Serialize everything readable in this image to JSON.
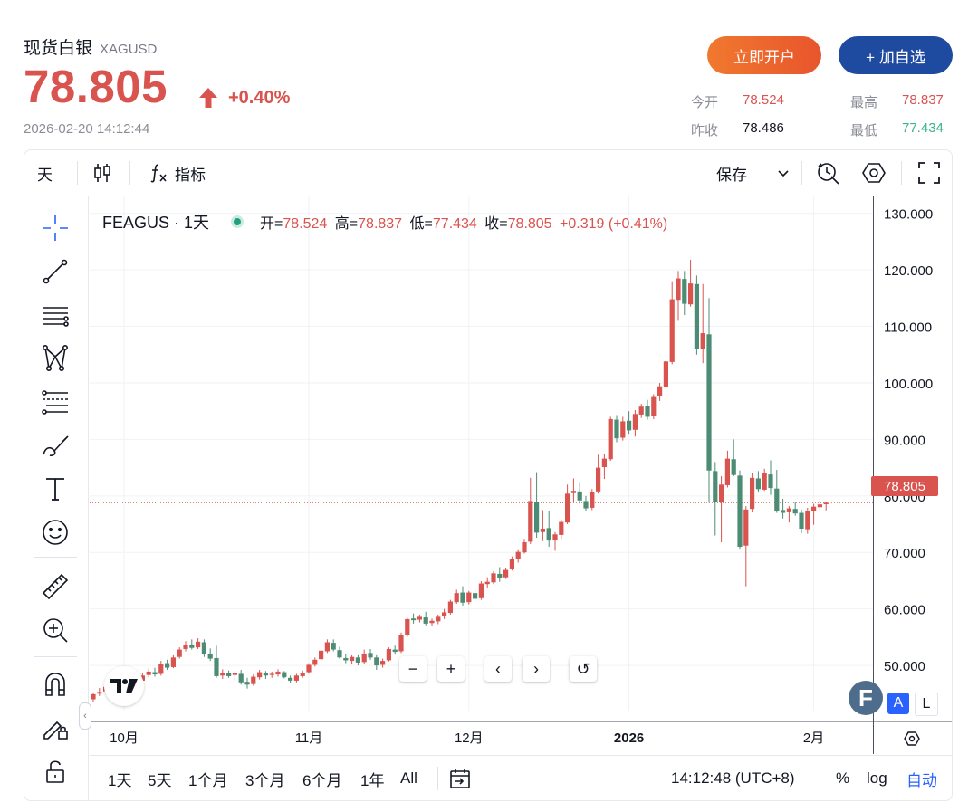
{
  "header": {
    "name": "现货白银",
    "symbol": "XAGUSD",
    "price": "78.805",
    "change": "+0.40%",
    "timestamp": "2026-02-20 14:12:44",
    "open_account_label": "立即开户",
    "add_watch_label": "+ 加自选",
    "stats": {
      "open_label": "今开",
      "open_value": "78.524",
      "high_label": "最高",
      "high_value": "78.837",
      "prev_label": "昨收",
      "prev_value": "78.486",
      "low_label": "最低",
      "low_value": "77.434"
    }
  },
  "colors": {
    "up": "#d9534f",
    "down": "#4c8c74",
    "accent": "#1e4aa0",
    "low_value": "#3cb38d"
  },
  "toolbar": {
    "interval": "天",
    "indicators_label": "指标",
    "save_label": "保存",
    "icons": [
      "candlestick-icon",
      "function-icon",
      "chevron-down-icon",
      "alert-clock-icon",
      "settings-hexagon-icon",
      "fullscreen-icon"
    ]
  },
  "left_tools": [
    "crosshair-icon",
    "trendline-icon",
    "parallel-lines-icon",
    "pattern-icon",
    "fib-icon",
    "brush-icon",
    "text-icon",
    "emoji-icon",
    "ruler-icon",
    "zoom-in-icon",
    "magnet-icon",
    "lock-pencil-icon",
    "unlock-icon"
  ],
  "legend": {
    "name": "FEAGUS · 1天",
    "open_k": "开=",
    "open_v": "78.524",
    "high_k": "高=",
    "high_v": "78.837",
    "low_k": "低=",
    "low_v": "77.434",
    "close_k": "收=",
    "close_v": "78.805",
    "change": "+0.319 (+0.41%)"
  },
  "chart_controls": [
    "−",
    "+",
    "‹",
    "›",
    "↺"
  ],
  "current_price_label": "78.805",
  "scale_buttons": {
    "a": "A",
    "l": "L"
  },
  "bottom": {
    "ranges": [
      "1天",
      "5天",
      "1个月",
      "3个月",
      "6个月",
      "1年",
      "All"
    ],
    "time": "14:12:48 (UTC+8)",
    "percent": "%",
    "log": "log",
    "auto": "自动"
  },
  "chart_data": {
    "type": "candlestick",
    "y_axis_ticks": [
      "130.000",
      "120.000",
      "110.000",
      "100.000",
      "90.000",
      "80.000",
      "70.000",
      "60.000",
      "50.000"
    ],
    "ylim": [
      42,
      133
    ],
    "x_axis_labels": [
      "10月",
      "11月",
      "12月",
      "2026",
      "2月"
    ],
    "x_label_index": [
      5,
      35,
      61,
      87,
      117
    ],
    "grid": true,
    "ohlc": [
      [
        44.0,
        45.2,
        43.5,
        44.9
      ],
      [
        45.0,
        46.0,
        44.6,
        45.3
      ],
      [
        45.4,
        46.8,
        45.0,
        46.2
      ],
      [
        46.3,
        47.4,
        45.8,
        46.5
      ],
      [
        46.5,
        47.2,
        45.6,
        46.0
      ],
      [
        46.2,
        47.5,
        45.9,
        47.1
      ],
      [
        47.0,
        48.2,
        46.7,
        47.8
      ],
      [
        47.9,
        48.5,
        47.0,
        47.3
      ],
      [
        47.3,
        48.6,
        46.9,
        48.2
      ],
      [
        48.3,
        49.4,
        47.9,
        48.9
      ],
      [
        48.8,
        49.6,
        48.0,
        48.4
      ],
      [
        48.5,
        50.8,
        48.2,
        50.3
      ],
      [
        50.4,
        51.0,
        49.2,
        49.6
      ],
      [
        49.7,
        51.8,
        49.5,
        51.4
      ],
      [
        51.5,
        53.2,
        51.2,
        52.8
      ],
      [
        52.9,
        54.3,
        52.5,
        53.6
      ],
      [
        53.7,
        54.6,
        52.8,
        53.1
      ],
      [
        53.2,
        54.8,
        52.9,
        54.2
      ],
      [
        54.1,
        54.6,
        51.5,
        52.0
      ],
      [
        52.1,
        53.0,
        50.8,
        51.2
      ],
      [
        51.3,
        53.5,
        47.8,
        48.1
      ],
      [
        48.2,
        49.3,
        47.6,
        48.7
      ],
      [
        48.6,
        49.1,
        47.8,
        48.1
      ],
      [
        48.3,
        49.0,
        47.2,
        48.6
      ],
      [
        48.5,
        49.2,
        46.6,
        47.0
      ],
      [
        47.1,
        47.8,
        45.9,
        46.6
      ],
      [
        46.7,
        48.4,
        46.4,
        48.0
      ],
      [
        47.9,
        49.2,
        47.5,
        48.8
      ],
      [
        48.7,
        49.0,
        47.6,
        48.2
      ],
      [
        48.3,
        48.9,
        47.8,
        48.5
      ],
      [
        48.4,
        49.3,
        48.0,
        48.9
      ],
      [
        48.8,
        49.0,
        47.7,
        47.9
      ],
      [
        47.8,
        48.2,
        46.9,
        47.3
      ],
      [
        47.3,
        48.5,
        47.0,
        48.2
      ],
      [
        48.1,
        49.1,
        47.8,
        48.7
      ],
      [
        48.8,
        50.4,
        48.5,
        50.1
      ],
      [
        50.1,
        51.4,
        49.8,
        51.0
      ],
      [
        51.1,
        52.8,
        50.9,
        52.6
      ],
      [
        52.5,
        54.6,
        52.2,
        54.1
      ],
      [
        54.0,
        54.6,
        52.5,
        52.8
      ],
      [
        52.7,
        53.3,
        51.2,
        51.4
      ],
      [
        51.3,
        52.0,
        50.4,
        50.9
      ],
      [
        50.8,
        51.8,
        50.2,
        51.5
      ],
      [
        51.4,
        51.8,
        50.0,
        50.5
      ],
      [
        50.6,
        52.8,
        50.3,
        52.1
      ],
      [
        52.2,
        52.9,
        51.0,
        51.4
      ],
      [
        51.4,
        51.8,
        49.2,
        50.0
      ],
      [
        50.1,
        51.2,
        49.6,
        50.8
      ],
      [
        50.9,
        53.2,
        50.7,
        52.9
      ],
      [
        52.8,
        53.5,
        51.9,
        52.4
      ],
      [
        52.5,
        55.8,
        52.2,
        55.3
      ],
      [
        55.4,
        58.4,
        55.0,
        58.2
      ],
      [
        58.3,
        59.2,
        57.4,
        58.0
      ],
      [
        58.1,
        59.0,
        57.6,
        58.6
      ],
      [
        58.5,
        59.5,
        57.1,
        57.4
      ],
      [
        57.5,
        58.3,
        56.9,
        57.9
      ],
      [
        57.8,
        59.0,
        57.3,
        58.6
      ],
      [
        58.7,
        60.0,
        58.2,
        59.4
      ],
      [
        59.3,
        61.6,
        59.0,
        61.3
      ],
      [
        61.2,
        63.4,
        60.9,
        62.8
      ],
      [
        62.9,
        64.0,
        60.6,
        61.1
      ],
      [
        61.2,
        63.2,
        60.8,
        62.9
      ],
      [
        62.8,
        63.4,
        61.3,
        61.8
      ],
      [
        61.9,
        64.9,
        61.6,
        64.5
      ],
      [
        64.4,
        65.6,
        63.8,
        64.8
      ],
      [
        64.7,
        66.7,
        64.4,
        66.3
      ],
      [
        66.2,
        67.4,
        64.8,
        65.5
      ],
      [
        65.6,
        67.3,
        65.3,
        66.9
      ],
      [
        67.0,
        69.3,
        66.8,
        68.9
      ],
      [
        68.8,
        70.4,
        68.2,
        70.1
      ],
      [
        70.0,
        72.4,
        69.8,
        71.8
      ],
      [
        71.9,
        83.2,
        71.5,
        79.1
      ],
      [
        79.0,
        84.2,
        72.6,
        73.5
      ],
      [
        73.6,
        77.5,
        72.0,
        74.2
      ],
      [
        74.3,
        77.3,
        71.0,
        72.1
      ],
      [
        72.2,
        73.6,
        70.3,
        73.2
      ],
      [
        73.1,
        75.8,
        72.4,
        75.4
      ],
      [
        75.3,
        82.0,
        75.0,
        80.4
      ],
      [
        80.5,
        83.1,
        78.8,
        80.9
      ],
      [
        80.8,
        82.3,
        78.6,
        79.2
      ],
      [
        79.1,
        80.0,
        77.3,
        77.8
      ],
      [
        77.9,
        81.2,
        77.5,
        80.7
      ],
      [
        80.8,
        87.3,
        80.4,
        85.0
      ],
      [
        85.1,
        87.5,
        83.0,
        86.6
      ],
      [
        86.5,
        94.0,
        86.2,
        93.6
      ],
      [
        93.5,
        94.3,
        89.5,
        90.2
      ],
      [
        90.3,
        94.0,
        89.8,
        93.2
      ],
      [
        93.3,
        95.0,
        91.0,
        91.6
      ],
      [
        91.7,
        95.2,
        90.5,
        94.5
      ],
      [
        94.4,
        96.3,
        93.8,
        95.8
      ],
      [
        95.9,
        97.0,
        93.5,
        94.0
      ],
      [
        94.1,
        98.0,
        93.6,
        97.5
      ],
      [
        97.6,
        100.0,
        96.8,
        99.4
      ],
      [
        99.3,
        104.0,
        98.9,
        103.8
      ],
      [
        103.7,
        118.0,
        103.3,
        114.8
      ],
      [
        114.7,
        119.8,
        111.0,
        118.5
      ],
      [
        118.4,
        119.8,
        112.0,
        114.0
      ],
      [
        113.9,
        121.8,
        113.5,
        117.6
      ],
      [
        117.5,
        119.0,
        105.0,
        106.0
      ],
      [
        106.0,
        117.5,
        103.5,
        108.8
      ],
      [
        108.6,
        115.0,
        78.8,
        84.5
      ],
      [
        84.4,
        86.0,
        73.0,
        78.9
      ],
      [
        79.0,
        83.5,
        71.8,
        82.0
      ],
      [
        81.9,
        88.0,
        81.5,
        86.6
      ],
      [
        86.5,
        90.0,
        83.5,
        83.7
      ],
      [
        83.6,
        84.5,
        70.5,
        71.0
      ],
      [
        71.2,
        78.2,
        64.0,
        77.6
      ],
      [
        77.7,
        84.0,
        77.1,
        83.2
      ],
      [
        83.1,
        84.4,
        80.6,
        81.2
      ],
      [
        81.1,
        84.8,
        80.9,
        84.0
      ],
      [
        83.8,
        86.3,
        80.2,
        81.4
      ],
      [
        81.3,
        84.6,
        77.0,
        77.4
      ],
      [
        77.5,
        79.5,
        76.0,
        77.0
      ],
      [
        77.1,
        78.2,
        75.3,
        77.8
      ],
      [
        77.7,
        78.9,
        76.5,
        76.9
      ],
      [
        77.0,
        77.6,
        73.4,
        74.2
      ],
      [
        74.1,
        77.9,
        73.3,
        77.3
      ],
      [
        77.4,
        78.6,
        74.9,
        78.1
      ],
      [
        78.0,
        79.5,
        77.2,
        78.5
      ],
      [
        78.524,
        78.837,
        77.434,
        78.805
      ]
    ]
  }
}
